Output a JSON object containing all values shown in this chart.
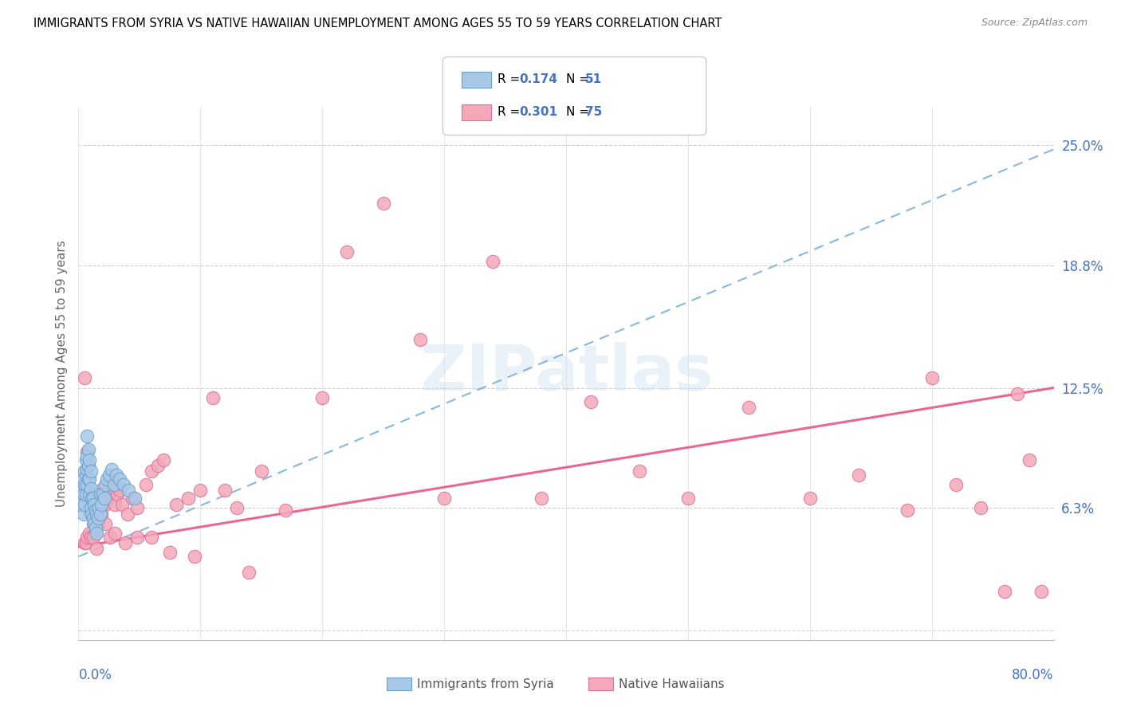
{
  "title": "IMMIGRANTS FROM SYRIA VS NATIVE HAWAIIAN UNEMPLOYMENT AMONG AGES 55 TO 59 YEARS CORRELATION CHART",
  "source": "Source: ZipAtlas.com",
  "ylabel": "Unemployment Among Ages 55 to 59 years",
  "blue_label_color": "#4472c4",
  "syria_color": "#a8c8e8",
  "hawaii_color": "#f4a8b8",
  "syria_edge_color": "#6aa0cc",
  "hawaii_edge_color": "#d870a0",
  "syria_trend_color": "#7ab0d8",
  "hawaii_trend_color": "#e8608a",
  "xlim": [
    0.0,
    0.8
  ],
  "ylim": [
    -0.005,
    0.27
  ],
  "ytick_vals": [
    0.0,
    0.063,
    0.125,
    0.188,
    0.25
  ],
  "ytick_labels": [
    "",
    "6.3%",
    "12.5%",
    "18.8%",
    "25.0%"
  ],
  "syria_R": 0.174,
  "syria_N": 51,
  "hawaii_R": 0.301,
  "hawaii_N": 75,
  "syria_trend_x0": 0.0,
  "syria_trend_x1": 0.8,
  "syria_trend_y0": 0.038,
  "syria_trend_y1": 0.248,
  "hawaii_trend_x0": 0.0,
  "hawaii_trend_x1": 0.8,
  "hawaii_trend_y0": 0.043,
  "hawaii_trend_y1": 0.125,
  "syria_x": [
    0.002,
    0.003,
    0.004,
    0.004,
    0.004,
    0.005,
    0.005,
    0.005,
    0.006,
    0.006,
    0.006,
    0.007,
    0.007,
    0.007,
    0.007,
    0.008,
    0.008,
    0.008,
    0.009,
    0.009,
    0.009,
    0.01,
    0.01,
    0.01,
    0.011,
    0.011,
    0.012,
    0.012,
    0.013,
    0.013,
    0.014,
    0.014,
    0.015,
    0.015,
    0.016,
    0.017,
    0.018,
    0.018,
    0.019,
    0.02,
    0.021,
    0.022,
    0.023,
    0.025,
    0.027,
    0.029,
    0.031,
    0.034,
    0.037,
    0.041,
    0.046
  ],
  "syria_y": [
    0.065,
    0.072,
    0.06,
    0.07,
    0.078,
    0.065,
    0.075,
    0.082,
    0.07,
    0.08,
    0.088,
    0.075,
    0.083,
    0.09,
    0.1,
    0.078,
    0.085,
    0.093,
    0.07,
    0.078,
    0.088,
    0.063,
    0.073,
    0.082,
    0.06,
    0.068,
    0.058,
    0.068,
    0.055,
    0.065,
    0.053,
    0.062,
    0.05,
    0.06,
    0.058,
    0.063,
    0.06,
    0.07,
    0.065,
    0.07,
    0.068,
    0.075,
    0.078,
    0.08,
    0.083,
    0.075,
    0.08,
    0.078,
    0.075,
    0.072,
    0.068
  ],
  "hawaii_x": [
    0.005,
    0.007,
    0.008,
    0.009,
    0.01,
    0.011,
    0.012,
    0.013,
    0.014,
    0.015,
    0.016,
    0.018,
    0.019,
    0.02,
    0.022,
    0.024,
    0.026,
    0.028,
    0.03,
    0.032,
    0.034,
    0.036,
    0.04,
    0.044,
    0.048,
    0.055,
    0.06,
    0.065,
    0.07,
    0.08,
    0.09,
    0.1,
    0.11,
    0.12,
    0.13,
    0.15,
    0.17,
    0.2,
    0.22,
    0.25,
    0.28,
    0.3,
    0.34,
    0.38,
    0.42,
    0.46,
    0.5,
    0.55,
    0.6,
    0.64,
    0.68,
    0.7,
    0.72,
    0.74,
    0.76,
    0.77,
    0.78,
    0.79,
    0.005,
    0.006,
    0.007,
    0.009,
    0.01,
    0.012,
    0.015,
    0.018,
    0.022,
    0.026,
    0.03,
    0.038,
    0.048,
    0.06,
    0.075,
    0.095,
    0.14
  ],
  "hawaii_y": [
    0.13,
    0.092,
    0.065,
    0.062,
    0.06,
    0.068,
    0.055,
    0.052,
    0.05,
    0.055,
    0.055,
    0.072,
    0.06,
    0.07,
    0.065,
    0.068,
    0.075,
    0.072,
    0.065,
    0.07,
    0.072,
    0.065,
    0.06,
    0.068,
    0.063,
    0.075,
    0.082,
    0.085,
    0.088,
    0.065,
    0.068,
    0.072,
    0.12,
    0.072,
    0.063,
    0.082,
    0.062,
    0.12,
    0.195,
    0.22,
    0.15,
    0.068,
    0.19,
    0.068,
    0.118,
    0.082,
    0.068,
    0.115,
    0.068,
    0.08,
    0.062,
    0.13,
    0.075,
    0.063,
    0.02,
    0.122,
    0.088,
    0.02,
    0.045,
    0.045,
    0.048,
    0.05,
    0.048,
    0.048,
    0.042,
    0.06,
    0.055,
    0.048,
    0.05,
    0.045,
    0.048,
    0.048,
    0.04,
    0.038,
    0.03
  ]
}
